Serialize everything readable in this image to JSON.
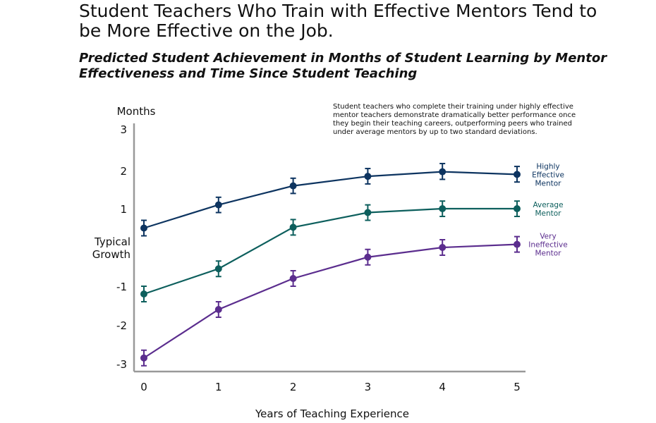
{
  "colors": {
    "highly_effective": "#0d3460",
    "average": "#0d5f5d",
    "very_ineffective": "#5b2d8e",
    "axis": "#999999"
  },
  "chart_data": {
    "type": "line",
    "title": "Student Teachers Who Train with Effective Mentors Tend to be More Effective on the Job.",
    "subtitle": "Predicted Student Achievement in Months of Student Learning by Mentor Effectiveness and Time Since Student Teaching",
    "annotation": "Student teachers who complete their training under highly effective mentor teachers demonstrate dramatically better performance once they begin their teaching careers, outperforming peers who trained under average mentors by up to two standard deviations.",
    "xlabel": "Years of Teaching Experience",
    "ylabel": "Months",
    "xlim": [
      0,
      5
    ],
    "ylim": [
      -3,
      3
    ],
    "x": [
      0,
      1,
      2,
      3,
      4,
      5
    ],
    "x_ticks": [
      "0",
      "1",
      "2",
      "3",
      "4",
      "5"
    ],
    "y_ticks": [
      {
        "value": 3,
        "label": "3"
      },
      {
        "value": 2,
        "label": "2"
      },
      {
        "value": 1,
        "label": "1"
      },
      {
        "value": -1,
        "label": "-1"
      },
      {
        "value": -2,
        "label": "-2"
      },
      {
        "value": -3,
        "label": "-3"
      }
    ],
    "y_zero_label": [
      "Typical",
      "Growth"
    ],
    "series": [
      {
        "name": "Highly Effective Mentor",
        "label_lines": [
          "Highly",
          "Effective",
          "Mentor"
        ],
        "color_key": "highly_effective",
        "values": [
          0.5,
          1.1,
          1.6,
          1.85,
          1.97,
          1.9
        ],
        "error": [
          0.2,
          0.2,
          0.2,
          0.2,
          0.2,
          0.2
        ]
      },
      {
        "name": "Average Mentor",
        "label_lines": [
          "Average",
          "Mentor"
        ],
        "color_key": "average",
        "values": [
          -1.2,
          -0.55,
          0.52,
          0.9,
          1.0,
          1.0
        ],
        "error": [
          0.2,
          0.2,
          0.2,
          0.2,
          0.2,
          0.2
        ]
      },
      {
        "name": "Very Ineffective Mentor",
        "label_lines": [
          "Very",
          "Ineffective",
          "Mentor"
        ],
        "color_key": "very_ineffective",
        "values": [
          -2.85,
          -1.6,
          -0.8,
          -0.25,
          0.0,
          0.08
        ],
        "error": [
          0.2,
          0.2,
          0.2,
          0.2,
          0.2,
          0.2
        ]
      }
    ],
    "grid": false,
    "legend": "right"
  }
}
